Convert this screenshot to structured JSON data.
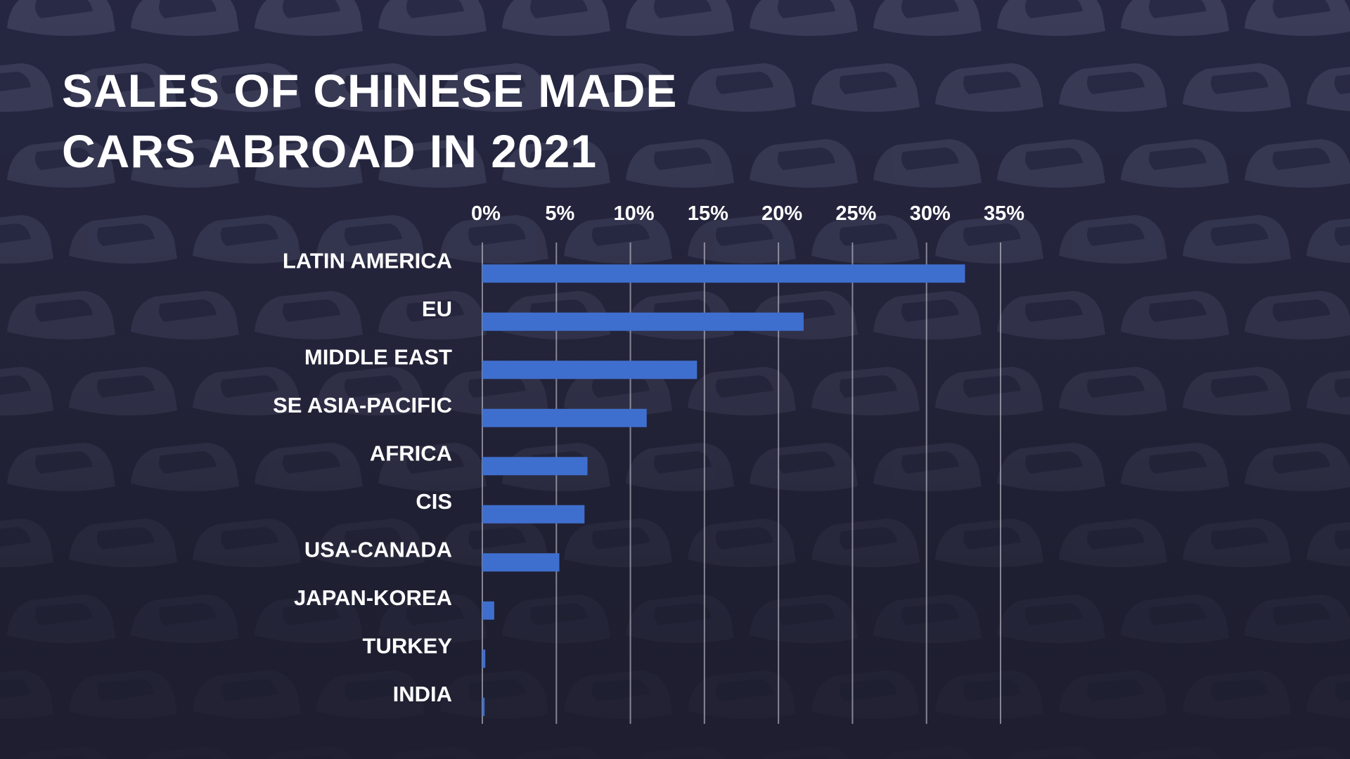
{
  "title_lines": [
    "SALES OF CHINESE MADE",
    "CARS ABROAD IN 2021"
  ],
  "colors": {
    "bar": "#3f6fce",
    "text": "#ffffff",
    "background": "#24243c"
  },
  "chart_data": {
    "type": "bar",
    "orientation": "horizontal",
    "title": "SALES OF CHINESE MADE CARS ABROAD IN 2021",
    "categories": [
      "LATIN AMERICA",
      "EU",
      "MIDDLE EAST",
      "SE ASIA-PACIFIC",
      "AFRICA",
      "CIS",
      "USA-CANADA",
      "JAPAN-KOREA",
      "TURKEY",
      "INDIA"
    ],
    "values": [
      32.6,
      21.7,
      14.5,
      11.1,
      7.1,
      6.9,
      5.2,
      0.8,
      0.2,
      0.15
    ],
    "unit": "%",
    "xlim": [
      0,
      35
    ],
    "x_ticks": [
      "0%",
      "5%",
      "10%",
      "15%",
      "20%",
      "25%",
      "30%",
      "35%"
    ],
    "x_axis_position": "top",
    "grid": true,
    "legend": "none"
  }
}
